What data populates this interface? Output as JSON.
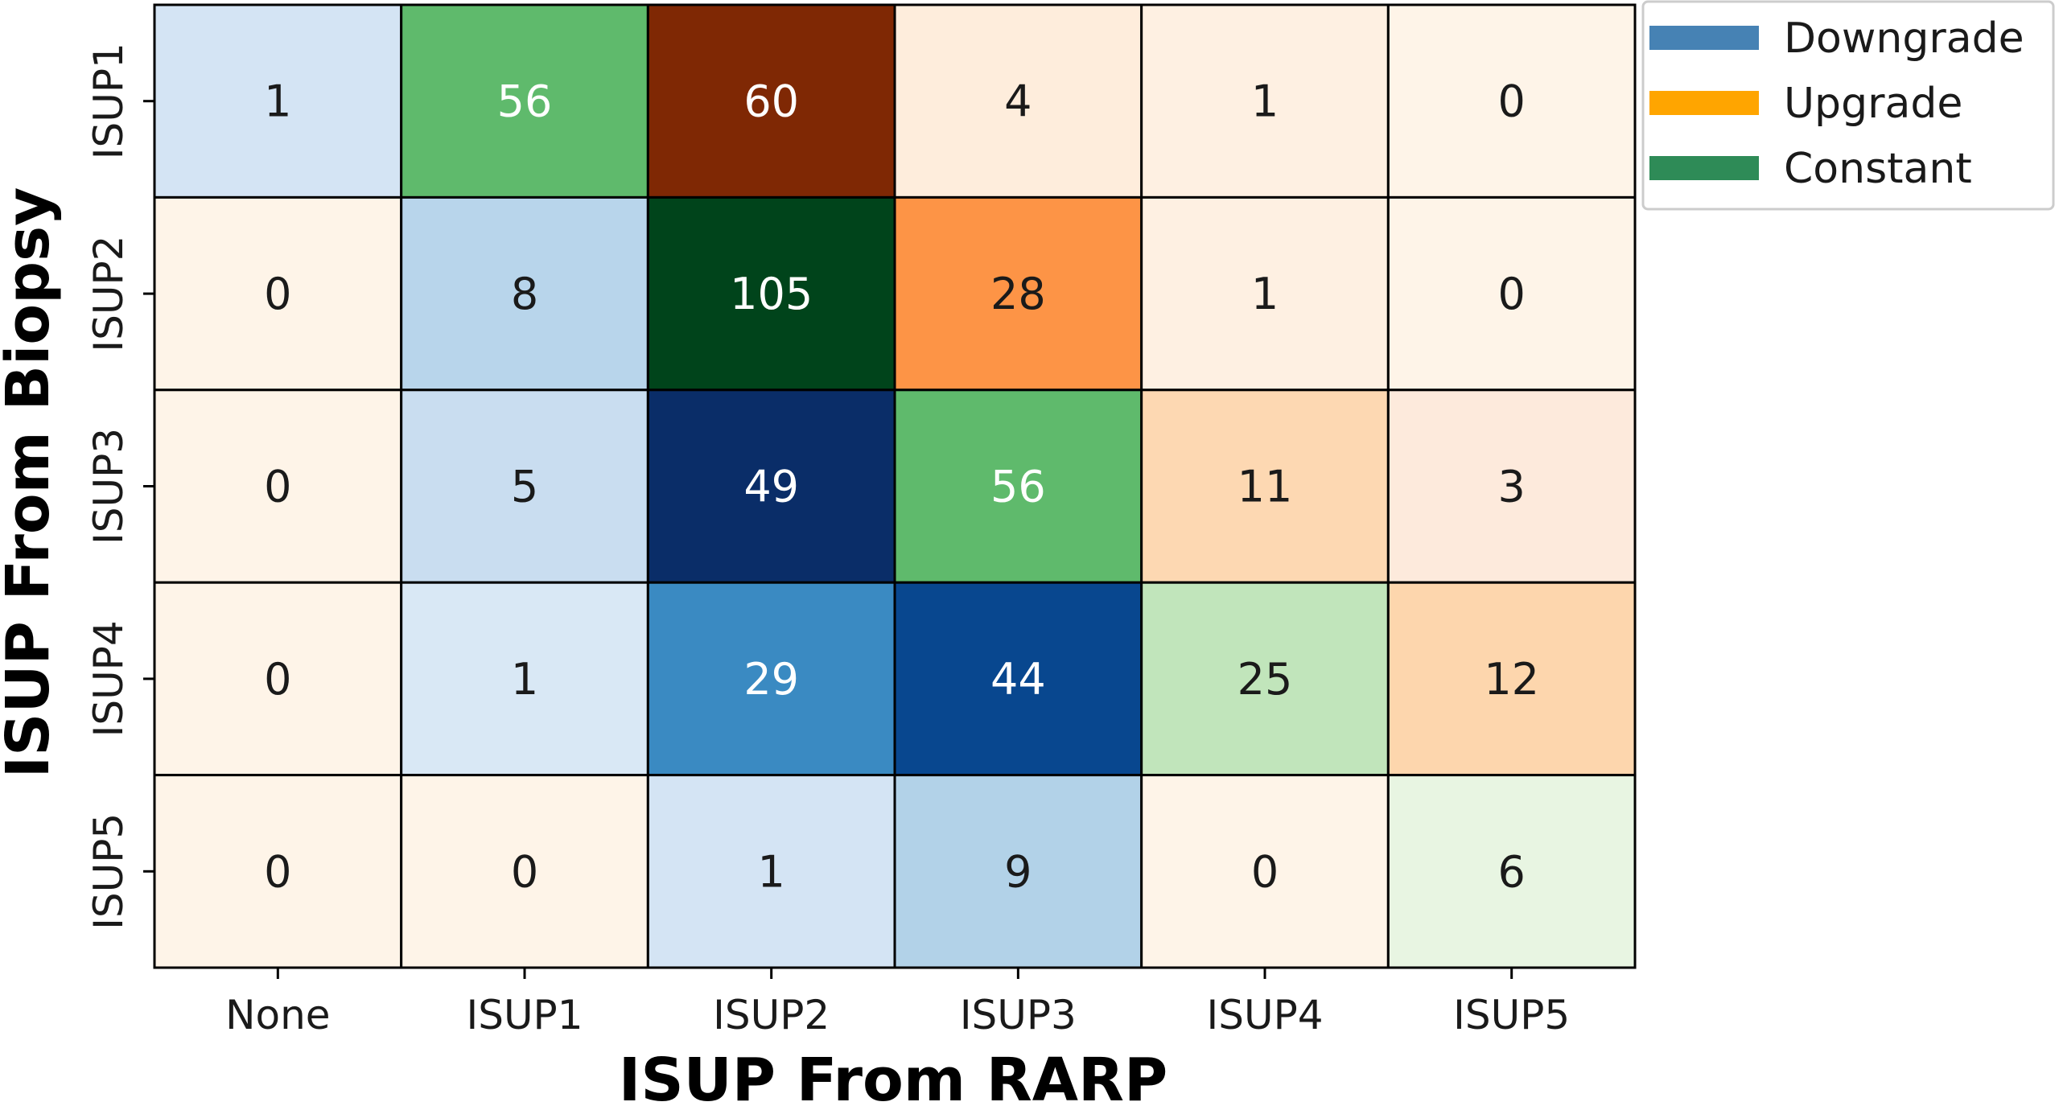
{
  "chart_data": {
    "type": "heatmap",
    "xlabel": "ISUP From RARP",
    "ylabel": "ISUP From Biopsy",
    "x_categories": [
      "None",
      "ISUP1",
      "ISUP2",
      "ISUP3",
      "ISUP4",
      "ISUP5"
    ],
    "y_categories": [
      "ISUP1",
      "ISUP2",
      "ISUP3",
      "ISUP4",
      "ISUP5"
    ],
    "values": [
      [
        1,
        56,
        60,
        4,
        1,
        0
      ],
      [
        0,
        8,
        105,
        28,
        1,
        0
      ],
      [
        0,
        5,
        49,
        56,
        11,
        3
      ],
      [
        0,
        1,
        29,
        44,
        25,
        12
      ],
      [
        0,
        0,
        1,
        9,
        0,
        6
      ]
    ],
    "cell_colors": [
      [
        "#d4e4f4",
        "#5fba6c",
        "#7f2804",
        "#feeddc",
        "#fef0e2",
        "#fef4e8"
      ],
      [
        "#fef4e8",
        "#b8d5eb",
        "#00441b",
        "#fd9446",
        "#fef0e2",
        "#fef4e8"
      ],
      [
        "#fef4e8",
        "#c9ddf0",
        "#0a2d68",
        "#5fba6c",
        "#fdd8b2",
        "#fdeadc"
      ],
      [
        "#fef4e8",
        "#d9e8f5",
        "#3a8ac2",
        "#08478f",
        "#c1e5bb",
        "#fdd6ad"
      ],
      [
        "#fef4e8",
        "#fef4e8",
        "#d4e4f4",
        "#b2d2e8",
        "#fef4e8",
        "#e8f5e2"
      ]
    ],
    "label_colors": [
      [
        "#1a1a1a",
        "#ffffff",
        "#ffffff",
        "#1a1a1a",
        "#1a1a1a",
        "#1a1a1a"
      ],
      [
        "#1a1a1a",
        "#1a1a1a",
        "#ffffff",
        "#1a1a1a",
        "#1a1a1a",
        "#1a1a1a"
      ],
      [
        "#1a1a1a",
        "#1a1a1a",
        "#ffffff",
        "#ffffff",
        "#1a1a1a",
        "#1a1a1a"
      ],
      [
        "#1a1a1a",
        "#1a1a1a",
        "#ffffff",
        "#ffffff",
        "#1a1a1a",
        "#1a1a1a"
      ],
      [
        "#1a1a1a",
        "#1a1a1a",
        "#1a1a1a",
        "#1a1a1a",
        "#1a1a1a",
        "#1a1a1a"
      ]
    ],
    "legend": {
      "placement": "top-right-outside",
      "entries": [
        {
          "label": "Downgrade",
          "color": "#4682b4"
        },
        {
          "label": "Upgrade",
          "color": "#ffa500"
        },
        {
          "label": "Constant",
          "color": "#2e8b57"
        }
      ]
    },
    "grid": true
  }
}
